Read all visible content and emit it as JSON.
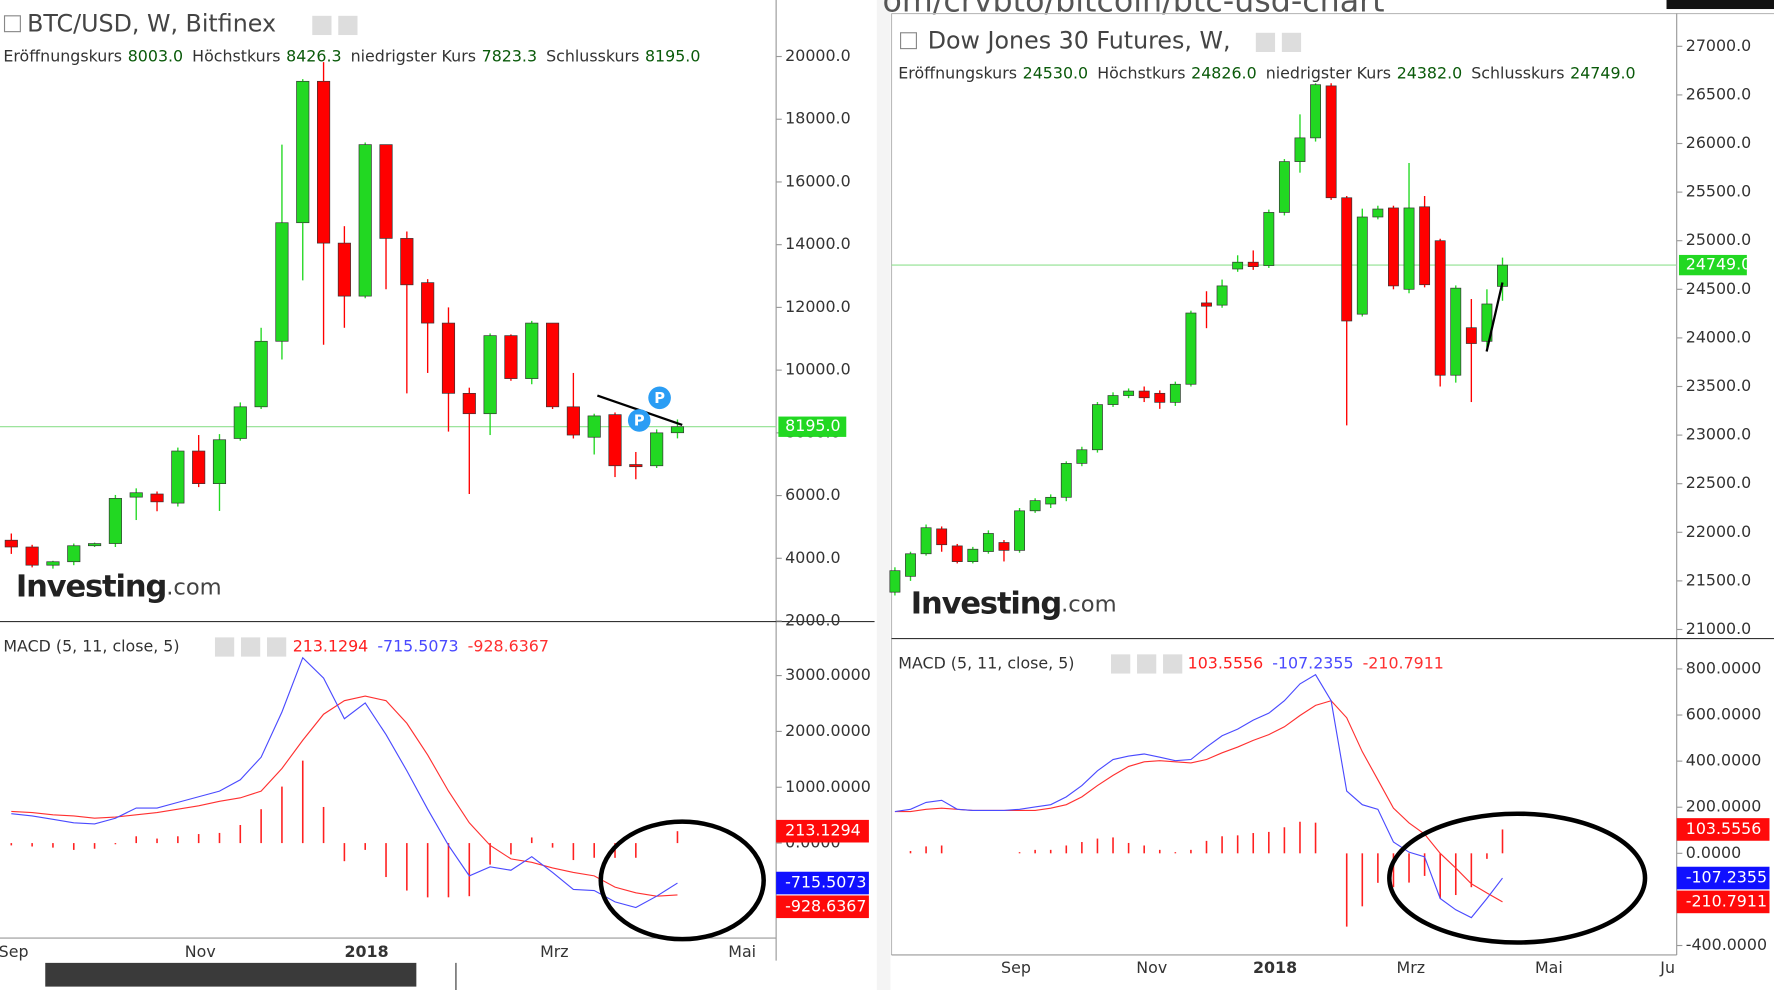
{
  "browser": {
    "url_fragment": "om/crvbto/bitcoin/btc-usd-chart"
  },
  "chart_data": [
    {
      "type": "candlestick",
      "title": "BTC/USD, W, Bitfinex",
      "ohlc_labels": [
        "Eröffnungskurs",
        "Höchstkurs",
        "niedrigster Kurs",
        "Schlusskurs"
      ],
      "ohlc_value_labels": [
        "8003.0",
        "8426.3",
        "7823.3",
        "8195.0"
      ],
      "close_label": "8195.0",
      "watermark": [
        "Investing",
        ".com"
      ],
      "markers": [
        "P",
        "P"
      ],
      "up_color": "#22d822",
      "down_color": "#ff0000",
      "open": [
        4577,
        4360,
        3780,
        3890,
        4400,
        4470,
        5950,
        6050,
        5760,
        7420,
        6380,
        7820,
        8830,
        10920,
        14700,
        19210,
        14050,
        12360,
        17190,
        14200,
        12790,
        11500,
        9260,
        8610,
        11100,
        9730,
        11500,
        8830,
        7860,
        8580,
        6990,
        6950,
        8003
      ],
      "high": [
        4790,
        4430,
        3920,
        4470,
        4500,
        6020,
        6230,
        6130,
        7530,
        7930,
        7960,
        8970,
        11350,
        17190,
        19280,
        19820,
        14590,
        17260,
        17190,
        14420,
        12900,
        12000,
        9440,
        11170,
        11140,
        11570,
        11500,
        9910,
        8610,
        8650,
        7390,
        8110,
        8426.3
      ],
      "low": [
        4140,
        3710,
        3670,
        3780,
        4360,
        4360,
        5220,
        5500,
        5650,
        6270,
        5510,
        7750,
        8760,
        10340,
        12860,
        10810,
        11350,
        12290,
        12580,
        9260,
        9910,
        8040,
        6050,
        7930,
        9660,
        9550,
        8760,
        7820,
        7310,
        6590,
        6520,
        6880,
        7823.3
      ],
      "close": [
        4360,
        3780,
        3890,
        4400,
        4470,
        5910,
        6090,
        5800,
        7420,
        6380,
        7780,
        8830,
        10920,
        14700,
        19210,
        14050,
        12360,
        17190,
        14200,
        12720,
        11500,
        9260,
        8610,
        11100,
        9730,
        11500,
        8830,
        7930,
        8540,
        6950,
        6920,
        8000,
        8195
      ],
      "ylim": [
        1982,
        21802
      ],
      "yticks": [
        {
          "value": 2000,
          "label": "2000.0"
        },
        {
          "value": 4000,
          "label": "4000.0"
        },
        {
          "value": 6000,
          "label": "6000.0"
        },
        {
          "value": 8000,
          "label": "8000.0"
        },
        {
          "value": 10000,
          "label": "10000.0"
        },
        {
          "value": 12000,
          "label": "12000.0"
        },
        {
          "value": 14000,
          "label": "14000.0"
        },
        {
          "value": 16000,
          "label": "16000.0"
        },
        {
          "value": 18000,
          "label": "18000.0"
        },
        {
          "value": 20000,
          "label": "20000.0"
        }
      ]
    },
    {
      "type": "macd",
      "title": "MACD (5, 11, close, 5)",
      "xlabels": [
        "Sep",
        "Nov",
        "2018",
        "Mrz",
        "Mai"
      ],
      "series": [
        {
          "color": "#ff2020",
          "last_label": "213.1294",
          "values": [
            -41,
            -61,
            -81,
            -122,
            -101,
            -21,
            122,
            81,
            122,
            162,
            182,
            324,
            607,
            1012,
            1478,
            647,
            -324,
            -122,
            -608,
            -850,
            -972,
            -971,
            -951,
            -385,
            -203,
            101,
            -81,
            -304,
            -263,
            -264,
            -263,
            0,
            213.1294
          ]
        },
        {
          "color": "#4a4aff",
          "last_label": "-715.5073",
          "values": [
            526,
            486,
            425,
            364,
            344,
            445,
            628,
            628,
            729,
            830,
            931,
            1134,
            1538,
            2348,
            3320,
            2955,
            2227,
            2510,
            1943,
            1296,
            607,
            -40,
            -587,
            -425,
            -486,
            -243,
            -526,
            -830,
            -850,
            -1053,
            -1154,
            -951,
            -715.5073
          ]
        },
        {
          "color": "#ff3030",
          "last_label": "-928.6367",
          "values": [
            567,
            547,
            506,
            486,
            445,
            466,
            506,
            547,
            607,
            668,
            749,
            810,
            931,
            1336,
            1842,
            2308,
            2551,
            2632,
            2551,
            2146,
            1579,
            931,
            364,
            -40,
            -283,
            -344,
            -445,
            -526,
            -587,
            -789,
            -891,
            -951,
            -928.6367
          ]
        }
      ],
      "ylim": [
        -1700,
        3947
      ],
      "yticks": [
        {
          "value": 0,
          "label": "0.0000"
        },
        {
          "value": 1000,
          "label": "1000.0000"
        },
        {
          "value": 2000,
          "label": "2000.0000"
        },
        {
          "value": 3000,
          "label": "3000.0000"
        }
      ]
    },
    {
      "type": "candlestick",
      "title": "Dow Jones 30 Futures, W,",
      "ohlc_labels": [
        "Eröffnungskurs",
        "Höchstkurs",
        "niedrigster Kurs",
        "Schlusskurs"
      ],
      "ohlc_value_labels": [
        "24530.0",
        "24826.0",
        "24382.0",
        "24749.0"
      ],
      "close_label": "24749.0",
      "watermark": [
        "Investing",
        ".com"
      ],
      "up_color": "#22d822",
      "down_color": "#ff0000",
      "open": [
        21384,
        21547,
        21779,
        22035,
        21860,
        21698,
        21802,
        21895,
        21814,
        22221,
        22291,
        22360,
        22709,
        22849,
        23314,
        23407,
        23453,
        23430,
        23337,
        23523,
        24360,
        24337,
        24709,
        24779,
        24744,
        25291,
        25814,
        26058,
        26593,
        25442,
        24244,
        25244,
        25337,
        24500,
        25349,
        25000,
        23616,
        24105,
        23965,
        24530
      ],
      "high": [
        21640,
        21800,
        22080,
        22060,
        21880,
        21850,
        22020,
        21920,
        22250,
        22350,
        22390,
        22730,
        22880,
        23340,
        23440,
        23480,
        23500,
        23460,
        23550,
        24280,
        24480,
        24600,
        24850,
        24900,
        25320,
        25840,
        26300,
        26620,
        26620,
        25460,
        25330,
        25360,
        25360,
        25800,
        25460,
        25020,
        24540,
        24400,
        24500,
        24826
      ],
      "low": [
        21350,
        21500,
        21760,
        21800,
        21680,
        21680,
        21780,
        21700,
        21790,
        22200,
        22250,
        22320,
        22680,
        22820,
        23290,
        23380,
        23340,
        23270,
        23300,
        23500,
        24100,
        24310,
        24680,
        24700,
        24720,
        25260,
        25700,
        26020,
        25420,
        23100,
        24220,
        25220,
        24500,
        24460,
        24520,
        23500,
        23540,
        23340,
        23900,
        24382
      ],
      "close": [
        21605,
        21779,
        22047,
        21872,
        21698,
        21826,
        21988,
        21814,
        22221,
        22326,
        22360,
        22709,
        22849,
        23314,
        23407,
        23453,
        23384,
        23337,
        23523,
        24256,
        24326,
        24535,
        24779,
        24733,
        25291,
        25814,
        26058,
        26605,
        25442,
        24174,
        25244,
        25326,
        24535,
        25337,
        24547,
        23616,
        24512,
        23942,
        24349,
        24749
      ],
      "ylim": [
        20907,
        27337
      ],
      "yticks": [
        {
          "value": 21000,
          "label": "21000.0"
        },
        {
          "value": 21500,
          "label": "21500.0"
        },
        {
          "value": 22000,
          "label": "22000.0"
        },
        {
          "value": 22500,
          "label": "22500.0"
        },
        {
          "value": 23000,
          "label": "23000.0"
        },
        {
          "value": 23500,
          "label": "23500.0"
        },
        {
          "value": 24000,
          "label": "24000.0"
        },
        {
          "value": 24500,
          "label": "24500.0"
        },
        {
          "value": 25000,
          "label": "25000.0"
        },
        {
          "value": 25500,
          "label": "25500.0"
        },
        {
          "value": 26000,
          "label": "26000.0"
        },
        {
          "value": 26500,
          "label": "26500.0"
        },
        {
          "value": 27000,
          "label": "27000.0"
        }
      ]
    },
    {
      "type": "macd",
      "title": "MACD (5, 11, close, 5)",
      "xlabels": [
        "Sep",
        "Nov",
        "2018",
        "Mrz",
        "Mai",
        "Ju"
      ],
      "series": [
        {
          "color": "#ff2020",
          "last_label": "103.5556",
          "values": [
            0,
            10,
            30,
            34,
            0,
            0,
            0,
            0,
            5,
            15,
            15,
            34,
            49,
            64,
            69,
            45,
            34,
            15,
            5,
            15,
            54,
            74,
            78,
            88,
            93,
            113,
            137,
            133,
            0,
            -318,
            -230,
            -128,
            -147,
            -127,
            -98,
            -196,
            -181,
            -147,
            -24,
            103.5556
          ]
        },
        {
          "color": "#4a4aff",
          "last_label": "-107.2355",
          "values": [
            181,
            191,
            221,
            230,
            191,
            186,
            186,
            186,
            191,
            201,
            211,
            245,
            294,
            358,
            407,
            422,
            431,
            417,
            402,
            407,
            461,
            510,
            539,
            578,
            608,
            662,
            735,
            775,
            662,
            270,
            211,
            191,
            49,
            5,
            -15,
            -196,
            -245,
            -279,
            -196,
            -107.2355
          ]
        },
        {
          "color": "#ff3030",
          "last_label": "-210.7911",
          "values": [
            181,
            181,
            191,
            196,
            191,
            186,
            186,
            186,
            186,
            186,
            196,
            211,
            245,
            294,
            338,
            377,
            397,
            402,
            397,
            392,
            407,
            436,
            461,
            490,
            515,
            549,
            598,
            642,
            662,
            588,
            441,
            319,
            196,
            132,
            83,
            0,
            -64,
            -132,
            -172,
            -210.7911
          ]
        }
      ],
      "ylim": [
        -441,
        927
      ],
      "yticks": [
        {
          "value": -400,
          "label": "-400.0000"
        },
        {
          "value": 0,
          "label": "0.0000"
        },
        {
          "value": 200,
          "label": "200.0000"
        },
        {
          "value": 400,
          "label": "400.0000"
        },
        {
          "value": 600,
          "label": "600.0000"
        },
        {
          "value": 800,
          "label": "800.0000"
        }
      ]
    }
  ]
}
